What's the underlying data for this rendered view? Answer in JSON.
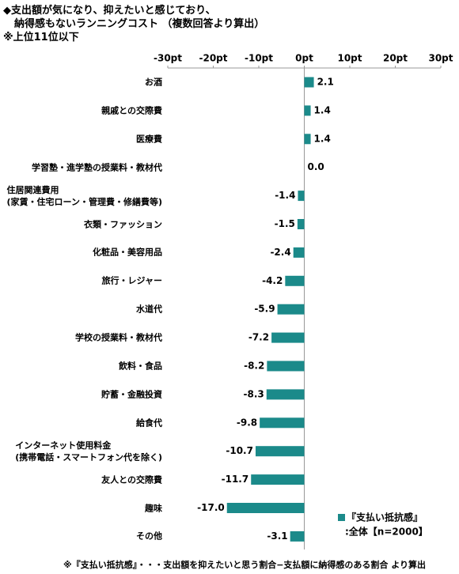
{
  "chart_data": {
    "type": "bar",
    "orientation": "horizontal",
    "title": [
      "◆支出額が気になり、抑えたいと感じており、",
      "納得感もないランニングコスト （複数回答より算出）"
    ],
    "subtitle": "※上位11位以下",
    "footnote": "※『支払い抵抗感』・・・支出額を抑えたいと思う割合−支払額に納得感のある割合 より算出",
    "categories": [
      "お酒",
      "親戚との交際費",
      "医療費",
      "学習塾・進学塾の授業料・教材代",
      "住居関連費用\n(家賃・住宅ローン・管理費・修繕費等)",
      "衣類・ファッション",
      "化粧品・美容用品",
      "旅行・レジャー",
      "水道代",
      "学校の授業料・教材代",
      "飲料・食品",
      "貯蓄・金融投資",
      "給食代",
      "インターネット使用料金\n(携帯電話・スマートフォン代を除く)",
      "友人との交際費",
      "趣味",
      "その他"
    ],
    "series": [
      {
        "name": "『支払い抵抗感』",
        "color": "#1b8a8a",
        "values": [
          2.1,
          1.4,
          1.4,
          0,
          -1.4,
          -1.5,
          -2.4,
          -4.2,
          -5.9,
          -7.2,
          -8.2,
          -8.3,
          -9.8,
          -10.7,
          -11.7,
          -17,
          -3.1
        ],
        "value_labels": [
          "2.1",
          "1.4",
          "1.4",
          "0.0",
          "-1.4",
          "-1.5",
          "-2.4",
          "-4.2",
          "-5.9",
          "-7.2",
          "-8.2",
          "-8.3",
          "-9.8",
          "-10.7",
          "-11.7",
          "-17.0",
          "-3.1"
        ]
      }
    ],
    "legend_note": ":全体【n=2000】",
    "xlim": [
      -30,
      30
    ],
    "xticks": [
      {
        "value": -30,
        "label": "-30pt"
      },
      {
        "value": -20,
        "label": "-20pt"
      },
      {
        "value": -10,
        "label": "-10pt"
      },
      {
        "value": 0,
        "label": "0pt"
      },
      {
        "value": 10,
        "label": "10pt"
      },
      {
        "value": 20,
        "label": "20pt"
      },
      {
        "value": 30,
        "label": "30pt"
      }
    ]
  }
}
